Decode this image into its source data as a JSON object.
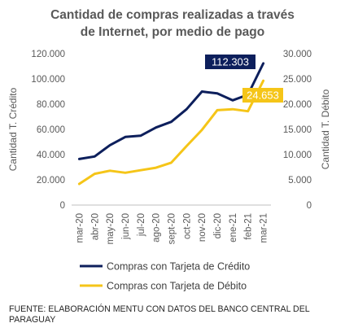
{
  "chart_data": {
    "type": "line",
    "title_lines": [
      "Cantidad de compras realizadas a través",
      "de Internet, por medio de pago"
    ],
    "x": [
      "mar-20",
      "abr-20",
      "may-20",
      "jun-20",
      "jul-20",
      "ago-20",
      "sept-20",
      "oct-20",
      "nov-20",
      "dic-20",
      "ene-21",
      "feb-21",
      "mar-21"
    ],
    "left_axis": {
      "label": "Cantidad T. Crédito",
      "ylim": [
        0,
        120000
      ],
      "ticks": [
        "0",
        "20.000",
        "40.000",
        "60.000",
        "80.000",
        "100.000",
        "120.000"
      ],
      "tick_values": [
        0,
        20000,
        40000,
        60000,
        80000,
        100000,
        120000
      ]
    },
    "right_axis": {
      "label": "Cantidad T. Débito",
      "ylim": [
        0,
        30000
      ],
      "ticks": [
        "0",
        "5.000",
        "10.000",
        "15.000",
        "20.000",
        "25.000",
        "30.000"
      ],
      "tick_values": [
        0,
        5000,
        10000,
        15000,
        20000,
        25000,
        30000
      ]
    },
    "series": [
      {
        "name": "Compras con Tarjeta de Crédito",
        "axis": "left",
        "color": "#0D1F5C",
        "values": [
          36500,
          38500,
          47500,
          54000,
          55000,
          61500,
          66000,
          76000,
          90000,
          88500,
          83000,
          87500,
          112303
        ],
        "end_label": "112.303",
        "end_label_bg": "#0D1F5C",
        "end_label_color": "#FFFFFF"
      },
      {
        "name": "Compras con Tarjeta de Débito",
        "axis": "right",
        "color": "#F5C518",
        "values": [
          4200,
          6200,
          6800,
          6400,
          6900,
          7400,
          8400,
          11700,
          14900,
          18800,
          19000,
          18600,
          24653
        ],
        "end_label": "24.653",
        "end_label_bg": "#F5C518",
        "end_label_color": "#FFFFFF"
      }
    ],
    "grid": false,
    "legend_position": "bottom"
  },
  "source_note": "FUENTE: ELABORACIÓN MENTU CON DATOS DEL BANCO CENTRAL DEL PARAGUAY"
}
